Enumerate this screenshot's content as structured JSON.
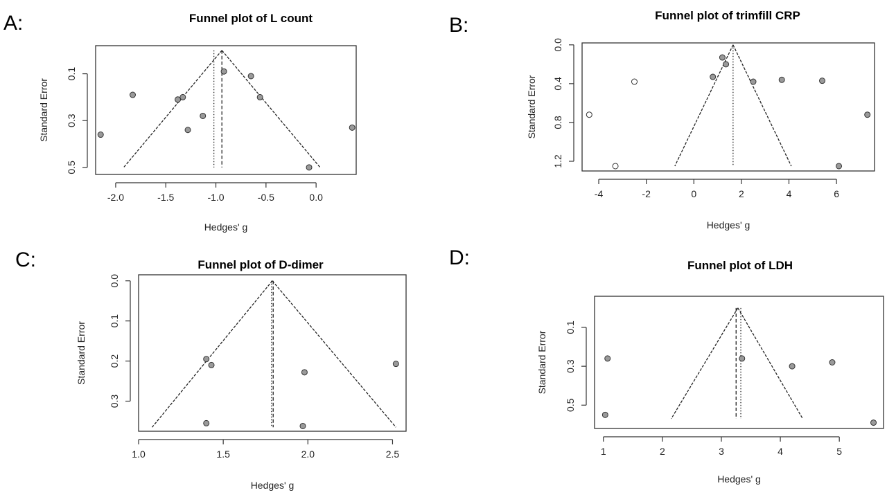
{
  "chart_data": [
    {
      "panel": "A:",
      "type": "scatter",
      "title": "Funnel plot of L count",
      "xlabel": "Hedges' g",
      "ylabel": "Standard Error",
      "xlim": [
        -2.2,
        0.4
      ],
      "ylim": [
        0.53,
        -0.02
      ],
      "y_reversed": true,
      "xticks": [
        -2.0,
        -1.5,
        -1.0,
        -0.5,
        0.0
      ],
      "xtick_labels": [
        "-2.0",
        "-1.5",
        "-1.0",
        "-0.5",
        "0.0"
      ],
      "yticks": [
        0.1,
        0.3,
        0.5
      ],
      "ytick_labels": [
        "0.1",
        "0.3",
        "0.5"
      ],
      "funnel": {
        "apex_x": -0.94,
        "apex_y": 0.0,
        "base_y": 0.5,
        "base_left": -1.92,
        "base_right": 0.04
      },
      "vlines": [
        {
          "x": -1.02,
          "style": "dotted"
        },
        {
          "x": -0.94,
          "style": "dashed"
        }
      ],
      "points": [
        {
          "x": -2.15,
          "y": 0.36,
          "open": false
        },
        {
          "x": -1.83,
          "y": 0.19,
          "open": false
        },
        {
          "x": -1.38,
          "y": 0.21,
          "open": false
        },
        {
          "x": -1.33,
          "y": 0.2,
          "open": false
        },
        {
          "x": -1.28,
          "y": 0.34,
          "open": false
        },
        {
          "x": -1.13,
          "y": 0.28,
          "open": false
        },
        {
          "x": -0.92,
          "y": 0.09,
          "open": false
        },
        {
          "x": -0.65,
          "y": 0.11,
          "open": false
        },
        {
          "x": -0.56,
          "y": 0.2,
          "open": false
        },
        {
          "x": -0.07,
          "y": 0.5,
          "open": false
        },
        {
          "x": 0.36,
          "y": 0.33,
          "open": false
        }
      ]
    },
    {
      "panel": "B:",
      "type": "scatter",
      "title": "Funnel plot of trimfill CRP",
      "xlabel": "Hedges' g",
      "ylabel": "Standard Error",
      "xlim": [
        -4.7,
        7.6
      ],
      "ylim": [
        1.3,
        -0.02
      ],
      "y_reversed": true,
      "xticks": [
        -4,
        -2,
        0,
        2,
        4,
        6
      ],
      "xtick_labels": [
        "-4",
        "-2",
        "0",
        "2",
        "4",
        "6"
      ],
      "yticks": [
        0.0,
        0.4,
        0.8,
        1.2
      ],
      "ytick_labels": [
        "0.0",
        "0.4",
        "0.8",
        "1.2"
      ],
      "funnel": {
        "apex_x": 1.65,
        "apex_y": 0.0,
        "base_y": 1.25,
        "base_left": -0.8,
        "base_right": 4.1
      },
      "vlines": [
        {
          "x": 1.65,
          "style": "dotted"
        }
      ],
      "points": [
        {
          "x": -4.4,
          "y": 0.72,
          "open": true
        },
        {
          "x": -3.3,
          "y": 1.25,
          "open": true
        },
        {
          "x": -2.5,
          "y": 0.38,
          "open": true
        },
        {
          "x": 0.8,
          "y": 0.33,
          "open": false
        },
        {
          "x": 1.2,
          "y": 0.13,
          "open": false
        },
        {
          "x": 1.35,
          "y": 0.2,
          "open": false
        },
        {
          "x": 2.5,
          "y": 0.38,
          "open": false
        },
        {
          "x": 3.7,
          "y": 0.36,
          "open": false
        },
        {
          "x": 5.4,
          "y": 0.37,
          "open": false
        },
        {
          "x": 6.1,
          "y": 1.25,
          "open": false
        },
        {
          "x": 7.3,
          "y": 0.72,
          "open": false
        }
      ]
    },
    {
      "panel": "C:",
      "type": "scatter",
      "title": "Funnel plot of D-dimer",
      "xlabel": "Hedges' g",
      "ylabel": "Standard Error",
      "xlim": [
        1.0,
        2.58
      ],
      "ylim": [
        0.375,
        -0.015
      ],
      "y_reversed": true,
      "xticks": [
        1.0,
        1.5,
        2.0,
        2.5
      ],
      "xtick_labels": [
        "1.0",
        "1.5",
        "2.0",
        "2.5"
      ],
      "yticks": [
        0.0,
        0.1,
        0.2,
        0.3
      ],
      "ytick_labels": [
        "0.0",
        "0.1",
        "0.2",
        "0.3"
      ],
      "funnel": {
        "apex_x": 1.79,
        "apex_y": 0.0,
        "base_y": 0.365,
        "base_left": 1.08,
        "base_right": 2.52
      },
      "vlines": [
        {
          "x": 1.785,
          "style": "dotted"
        },
        {
          "x": 1.795,
          "style": "dashed"
        }
      ],
      "points": [
        {
          "x": 1.4,
          "y": 0.195,
          "open": false
        },
        {
          "x": 1.43,
          "y": 0.21,
          "open": false
        },
        {
          "x": 1.4,
          "y": 0.355,
          "open": false
        },
        {
          "x": 1.98,
          "y": 0.228,
          "open": false
        },
        {
          "x": 1.97,
          "y": 0.362,
          "open": false
        },
        {
          "x": 2.52,
          "y": 0.207,
          "open": false
        }
      ]
    },
    {
      "panel": "D:",
      "type": "scatter",
      "title": "Funnel plot of LDH",
      "xlabel": "Hedges' g",
      "ylabel": "Standard Error",
      "xlim": [
        0.85,
        5.75
      ],
      "ylim": [
        0.62,
        -0.06
      ],
      "y_reversed": true,
      "xticks": [
        1,
        2,
        3,
        4,
        5
      ],
      "xtick_labels": [
        "1",
        "2",
        "3",
        "4",
        "5"
      ],
      "yticks": [
        0.1,
        0.3,
        0.5
      ],
      "ytick_labels": [
        "0.1",
        "0.3",
        "0.5"
      ],
      "funnel": {
        "apex_x": 3.28,
        "apex_y": 0.0,
        "base_y": 0.57,
        "base_left": 2.15,
        "base_right": 4.38
      },
      "vlines": [
        {
          "x": 3.25,
          "style": "dashed"
        },
        {
          "x": 3.33,
          "style": "dotted"
        }
      ],
      "points": [
        {
          "x": 1.07,
          "y": 0.26,
          "open": false
        },
        {
          "x": 1.03,
          "y": 0.55,
          "open": false
        },
        {
          "x": 3.35,
          "y": 0.26,
          "open": false
        },
        {
          "x": 4.2,
          "y": 0.3,
          "open": false
        },
        {
          "x": 4.88,
          "y": 0.28,
          "open": false
        },
        {
          "x": 5.58,
          "y": 0.59,
          "open": false
        }
      ]
    }
  ]
}
